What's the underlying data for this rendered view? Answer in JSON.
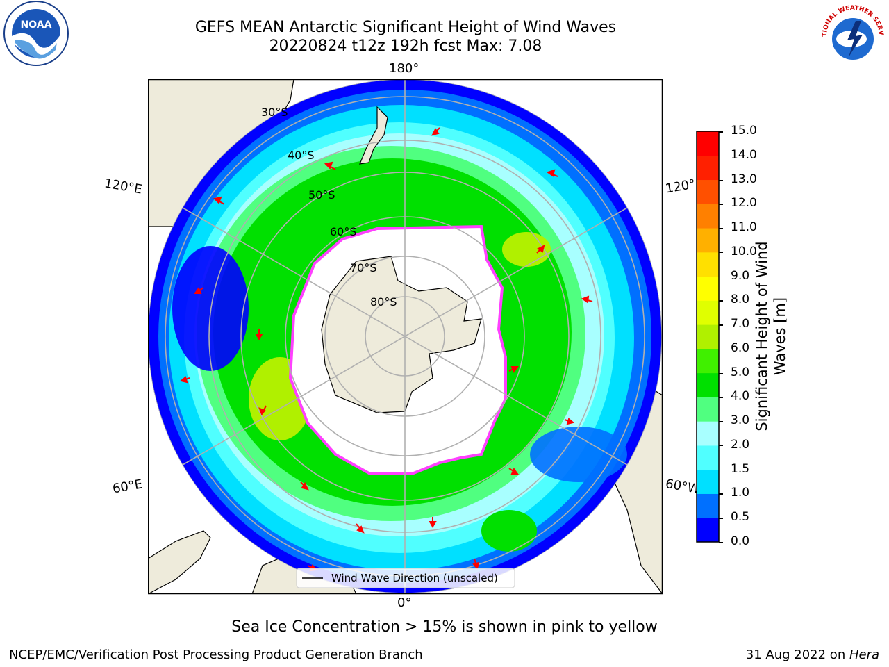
{
  "title_line1": "GEFS MEAN Antarctic Significant Height of Wind Waves",
  "title_line2": "20220824 t12z 192h fcst   Max: 7.08",
  "longitude_labels": {
    "top": "180°",
    "left": "120°E",
    "right": "120°",
    "lower_left": "60°E",
    "lower_right": "60°W",
    "bottom": "0°"
  },
  "latitude_labels": [
    "30°S",
    "40°S",
    "50°S",
    "60°S",
    "70°S",
    "80°S"
  ],
  "legend": {
    "label": "Wind Wave Direction (unscaled)"
  },
  "colorbar": {
    "label_line1": "Significant Height of Wind",
    "label_line2": "Waves [m]",
    "ticks": [
      "0.0",
      "0.5",
      "1.0",
      "1.5",
      "2.0",
      "3.0",
      "4.0",
      "5.0",
      "6.0",
      "7.0",
      "8.0",
      "9.0",
      "10.0",
      "11.0",
      "12.0",
      "13.0",
      "14.0",
      "15.0"
    ],
    "colors": [
      "#0000ff",
      "#0070ff",
      "#00e0ff",
      "#50ffff",
      "#a8ffff",
      "#50ff80",
      "#00e000",
      "#40f000",
      "#b0f000",
      "#e0ff00",
      "#ffff00",
      "#ffe000",
      "#ffb000",
      "#ff8000",
      "#ff5000",
      "#ff2000",
      "#ff0000"
    ]
  },
  "note": "Sea Ice Concentration > 15% is shown in pink to yellow",
  "footer_left": "NCEP/EMC/Verification Post Processing Product Generation Branch",
  "footer_date": "31 Aug 2022 on ",
  "footer_machine": "Hera",
  "logos": {
    "noaa": "NOAA",
    "nws": "NATIONAL WEATHER SERVICE"
  },
  "colors": {
    "land": "#eeebdb",
    "ice": "#ffffff",
    "ice_edge": "#ff40ff",
    "arrow": "#ff0000",
    "grid": "#b0b0b0"
  }
}
